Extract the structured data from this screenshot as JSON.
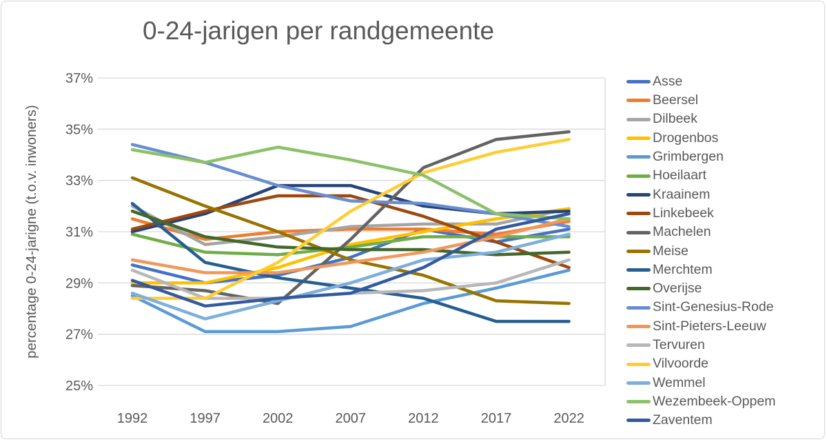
{
  "styles": {
    "title_color": "#595959",
    "axis_text_color": "#595959",
    "grid_color": "#d9d9d9",
    "background": "#ffffff",
    "border_color": "#d6d6d6"
  },
  "chart_data": {
    "type": "line",
    "title": "0-24-jarigen per randgemeente",
    "ylabel": "percentage 0-24-jarigne (t.o.v. inwoners)",
    "xlabel": "",
    "categories": [
      "1992",
      "1997",
      "2002",
      "2007",
      "2012",
      "2017",
      "2022"
    ],
    "y_ticks": [
      "37%",
      "35%",
      "33%",
      "31%",
      "29%",
      "27%",
      "25%"
    ],
    "ylim": [
      25,
      37
    ],
    "unit": "%",
    "grid": "horizontal",
    "legend_position": "right",
    "series": [
      {
        "name": "Asse",
        "color": "#4472C4",
        "values": [
          29.7,
          29.0,
          29.3,
          30.0,
          31.1,
          30.6,
          31.1
        ]
      },
      {
        "name": "Beersel",
        "color": "#ED7D31",
        "values": [
          31.5,
          30.7,
          31.0,
          31.1,
          31.1,
          30.9,
          31.4
        ]
      },
      {
        "name": "Dilbeek",
        "color": "#A5A5A5",
        "values": [
          32.0,
          30.5,
          30.8,
          31.2,
          31.3,
          31.3,
          31.9
        ]
      },
      {
        "name": "Drogenbos",
        "color": "#FFC000",
        "values": [
          29.0,
          29.0,
          29.6,
          30.5,
          31.0,
          31.5,
          31.9
        ]
      },
      {
        "name": "Grimbergen",
        "color": "#5B9BD5",
        "values": [
          28.5,
          27.1,
          27.1,
          27.3,
          28.2,
          28.8,
          29.5
        ]
      },
      {
        "name": "Hoeilaart",
        "color": "#70AD47",
        "values": [
          30.9,
          30.2,
          30.1,
          30.4,
          30.8,
          30.8,
          30.8
        ]
      },
      {
        "name": "Kraainem",
        "color": "#264478",
        "values": [
          31.0,
          31.7,
          32.8,
          32.8,
          32.0,
          31.7,
          31.8
        ]
      },
      {
        "name": "Linkebeek",
        "color": "#9E480E",
        "values": [
          31.1,
          31.8,
          32.4,
          32.4,
          31.6,
          30.6,
          29.6
        ]
      },
      {
        "name": "Machelen",
        "color": "#636363",
        "values": [
          28.9,
          28.7,
          28.2,
          30.7,
          33.5,
          34.6,
          34.9
        ]
      },
      {
        "name": "Meise",
        "color": "#997300",
        "values": [
          33.1,
          32.0,
          31.0,
          29.9,
          29.3,
          28.3,
          28.2
        ]
      },
      {
        "name": "Merchtem",
        "color": "#255E91",
        "values": [
          32.1,
          29.8,
          29.2,
          28.8,
          28.4,
          27.5,
          27.5
        ]
      },
      {
        "name": "Overijse",
        "color": "#43682B",
        "values": [
          31.8,
          30.8,
          30.4,
          30.3,
          30.3,
          30.1,
          30.2
        ]
      },
      {
        "name": "Sint-Genesius-Rode",
        "color": "#698ED0",
        "values": [
          34.4,
          33.7,
          32.8,
          32.2,
          32.1,
          31.7,
          31.2
        ]
      },
      {
        "name": "Sint-Pieters-Leeuw",
        "color": "#F1975A",
        "values": [
          29.9,
          29.4,
          29.4,
          29.8,
          30.2,
          30.8,
          31.5
        ]
      },
      {
        "name": "Tervuren",
        "color": "#B7B7B7",
        "values": [
          29.5,
          28.4,
          28.4,
          28.6,
          28.7,
          29.0,
          29.9
        ]
      },
      {
        "name": "Vilvoorde",
        "color": "#FFCD33",
        "values": [
          28.4,
          28.4,
          29.8,
          31.8,
          33.3,
          34.1,
          34.6
        ]
      },
      {
        "name": "Wemmel",
        "color": "#7CAFDD",
        "values": [
          28.6,
          27.6,
          28.3,
          29.0,
          29.9,
          30.2,
          30.9
        ]
      },
      {
        "name": "Wezembeek-Oppem",
        "color": "#8CC168",
        "values": [
          34.2,
          33.7,
          34.3,
          33.8,
          33.2,
          31.7,
          31.5
        ]
      },
      {
        "name": "Zaventem",
        "color": "#335AA1",
        "values": [
          29.1,
          28.1,
          28.4,
          28.6,
          29.6,
          31.1,
          31.7
        ]
      }
    ]
  }
}
